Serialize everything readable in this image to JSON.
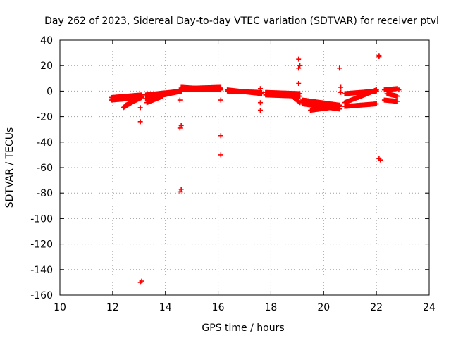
{
  "chart_data": {
    "type": "scatter",
    "title": "Day 262 of 2023, Sidereal Day-to-day VTEC variation (SDTVAR) for receiver ptvl",
    "xlabel": "GPS time / hours",
    "ylabel": "SDTVAR / TECUs",
    "xlim": [
      10,
      24
    ],
    "ylim": [
      -160,
      40
    ],
    "x_ticks": [
      10,
      12,
      14,
      16,
      18,
      20,
      22,
      24
    ],
    "y_ticks": [
      40,
      20,
      0,
      -20,
      -40,
      -60,
      -80,
      -100,
      -120,
      -140,
      -160
    ],
    "grid": true,
    "marker": "plus",
    "color": "#ff0000",
    "series": [
      {
        "name": "SDTVAR",
        "segments": [
          {
            "x0": 11.95,
            "x1": 13.1,
            "y0": -7,
            "y1": -5
          },
          {
            "x0": 11.95,
            "x1": 13.1,
            "y0": -5,
            "y1": -3
          },
          {
            "x0": 12.4,
            "x1": 13.1,
            "y0": -13,
            "y1": -4
          },
          {
            "x0": 12.5,
            "x1": 13.1,
            "y0": -11,
            "y1": -5
          },
          {
            "x0": 13.25,
            "x1": 14.6,
            "y0": -6,
            "y1": 0
          },
          {
            "x0": 13.25,
            "x1": 14.6,
            "y0": -3,
            "y1": 0
          },
          {
            "x0": 13.3,
            "x1": 13.9,
            "y0": -9,
            "y1": -4
          },
          {
            "x0": 14.6,
            "x1": 16.1,
            "y0": 1,
            "y1": 2
          },
          {
            "x0": 14.6,
            "x1": 16.1,
            "y0": 2,
            "y1": 3
          },
          {
            "x0": 14.6,
            "x1": 16.1,
            "y0": 3,
            "y1": 1
          },
          {
            "x0": 16.35,
            "x1": 17.65,
            "y0": 0,
            "y1": -1
          },
          {
            "x0": 16.35,
            "x1": 17.65,
            "y0": 1,
            "y1": -2
          },
          {
            "x0": 17.8,
            "x1": 19.1,
            "y0": -1,
            "y1": -2
          },
          {
            "x0": 17.8,
            "x1": 19.1,
            "y0": -3,
            "y1": -4
          },
          {
            "x0": 18.8,
            "x1": 19.1,
            "y0": -4,
            "y1": -9
          },
          {
            "x0": 19.2,
            "x1": 20.6,
            "y0": -7,
            "y1": -11
          },
          {
            "x0": 19.2,
            "x1": 20.6,
            "y0": -10,
            "y1": -14
          },
          {
            "x0": 19.5,
            "x1": 20.6,
            "y0": -15,
            "y1": -12
          },
          {
            "x0": 19.6,
            "x1": 20.6,
            "y0": -8,
            "y1": -14
          },
          {
            "x0": 20.8,
            "x1": 22.0,
            "y0": -2,
            "y1": 0
          },
          {
            "x0": 20.8,
            "x1": 22.0,
            "y0": -12,
            "y1": -10
          },
          {
            "x0": 20.8,
            "x1": 22.0,
            "y0": -9,
            "y1": 1
          },
          {
            "x0": 21.3,
            "x1": 22.0,
            "y0": -5,
            "y1": 1
          },
          {
            "x0": 22.3,
            "x1": 22.8,
            "y0": -7,
            "y1": -8
          },
          {
            "x0": 22.3,
            "x1": 22.8,
            "y0": 1,
            "y1": 2
          },
          {
            "x0": 22.4,
            "x1": 22.8,
            "y0": -2,
            "y1": -4
          }
        ],
        "points": [
          [
            13.05,
            -13
          ],
          [
            13.05,
            -24
          ],
          [
            13.1,
            -149
          ],
          [
            13.05,
            -150
          ],
          [
            14.55,
            -7
          ],
          [
            14.6,
            -27
          ],
          [
            14.55,
            -29
          ],
          [
            14.6,
            -77
          ],
          [
            14.55,
            -79
          ],
          [
            16.1,
            -7
          ],
          [
            16.1,
            -35
          ],
          [
            16.1,
            -50
          ],
          [
            17.6,
            2
          ],
          [
            17.6,
            -9
          ],
          [
            17.6,
            -15
          ],
          [
            19.05,
            25
          ],
          [
            19.1,
            20
          ],
          [
            19.05,
            18
          ],
          [
            19.05,
            6
          ],
          [
            20.6,
            18
          ],
          [
            20.65,
            3
          ],
          [
            20.65,
            -1
          ],
          [
            22.1,
            28
          ],
          [
            22.1,
            27
          ],
          [
            22.1,
            -53
          ],
          [
            22.15,
            -54
          ],
          [
            12.0,
            -6
          ],
          [
            22.85,
            1
          ]
        ]
      }
    ]
  }
}
